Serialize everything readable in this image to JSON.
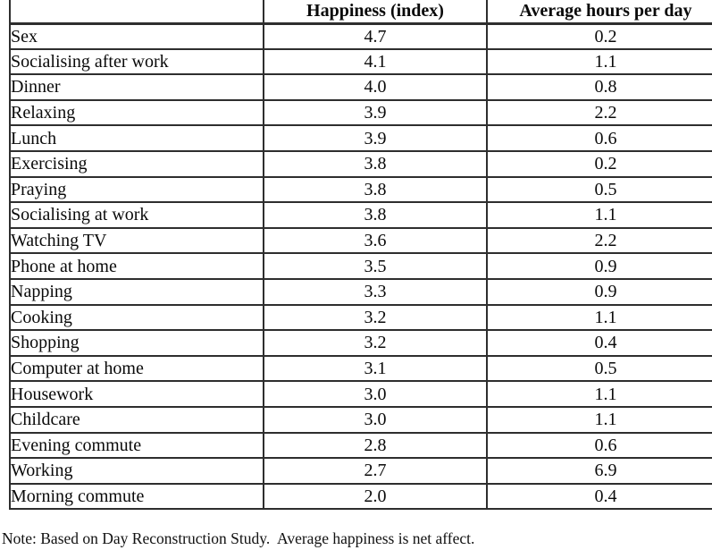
{
  "colors": {
    "background": "#ffffff",
    "text": "#0a0a0a",
    "border": "#2e2e2e"
  },
  "table": {
    "columns": [
      "",
      "Happiness (index)",
      "Average hours per day"
    ],
    "rows": [
      {
        "activity": "Sex",
        "happiness": "4.7",
        "hours": "0.2"
      },
      {
        "activity": "Socialising after work",
        "happiness": "4.1",
        "hours": "1.1"
      },
      {
        "activity": "Dinner",
        "happiness": "4.0",
        "hours": "0.8"
      },
      {
        "activity": "Relaxing",
        "happiness": "3.9",
        "hours": "2.2"
      },
      {
        "activity": "Lunch",
        "happiness": "3.9",
        "hours": "0.6"
      },
      {
        "activity": "Exercising",
        "happiness": "3.8",
        "hours": "0.2"
      },
      {
        "activity": "Praying",
        "happiness": "3.8",
        "hours": "0.5"
      },
      {
        "activity": "Socialising at work",
        "happiness": "3.8",
        "hours": "1.1"
      },
      {
        "activity": "Watching TV",
        "happiness": "3.6",
        "hours": "2.2"
      },
      {
        "activity": "Phone at home",
        "happiness": "3.5",
        "hours": "0.9"
      },
      {
        "activity": "Napping",
        "happiness": "3.3",
        "hours": "0.9"
      },
      {
        "activity": "Cooking",
        "happiness": "3.2",
        "hours": "1.1"
      },
      {
        "activity": "Shopping",
        "happiness": "3.2",
        "hours": "0.4"
      },
      {
        "activity": "Computer at home",
        "happiness": "3.1",
        "hours": "0.5"
      },
      {
        "activity": "Housework",
        "happiness": "3.0",
        "hours": "1.1"
      },
      {
        "activity": "Childcare",
        "happiness": "3.0",
        "hours": "1.1"
      },
      {
        "activity": "Evening commute",
        "happiness": "2.8",
        "hours": "0.6"
      },
      {
        "activity": "Working",
        "happiness": "2.7",
        "hours": "6.9"
      },
      {
        "activity": "Morning commute",
        "happiness": "2.0",
        "hours": "0.4"
      }
    ]
  },
  "note": "Note: Based on Day Reconstruction Study.  Average happiness is net affect."
}
